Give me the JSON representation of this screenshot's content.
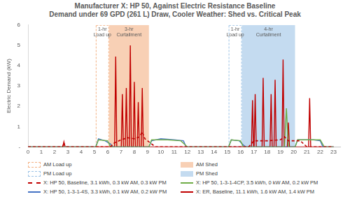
{
  "chart_data": {
    "type": "line",
    "title": [
      "Manufacturer X: HP 50, Against Electric Resistance Baseline",
      "Demand under 69 GPD (261 L) Draw, Cooler Weather: Shed vs. Critical Peak"
    ],
    "y_label": "Electric Demand (kW)",
    "xlim": [
      0,
      23.5
    ],
    "xticks": [
      0,
      1,
      2,
      3,
      4,
      5,
      6,
      7,
      8,
      9,
      10,
      11,
      12,
      13,
      14,
      15,
      16,
      17,
      18,
      19,
      20,
      21,
      22,
      23
    ],
    "ylim": [
      0,
      6
    ],
    "yticks": [
      {
        "value": 0,
        "label": "-"
      },
      1,
      2,
      3,
      4,
      5,
      6
    ],
    "grid": false,
    "legend": "bottom",
    "regions": [
      {
        "name": "AM Load up",
        "type": "box",
        "start": 5.1,
        "end": 6.1,
        "color": "#f4b183",
        "line_style": "dashed",
        "annotation": [
          "1-hr",
          "Load up"
        ]
      },
      {
        "name": "AM Shed",
        "type": "band",
        "start": 6.1,
        "end": 9.1,
        "color": "#f4b183",
        "annotation": [
          "3-hr",
          "Curtailment"
        ]
      },
      {
        "name": "PM Load up",
        "type": "box",
        "start": 15.1,
        "end": 16.1,
        "color": "#9dc3e6",
        "line_style": "dashed",
        "annotation": [
          "1-hr",
          "Load up"
        ]
      },
      {
        "name": "PM Shed",
        "type": "band",
        "start": 16.1,
        "end": 20.1,
        "color": "#9dc3e6",
        "annotation": [
          "4-hr",
          "Curtailment"
        ]
      }
    ],
    "series": [
      {
        "name": "X: HP 50, Baseline, 3.1 kWh, 0.3 kW AM, 0.3 kW PM",
        "color": "#c00000",
        "line_style": "dashed",
        "x": [
          0,
          2.6,
          2.7,
          2.8,
          6.2,
          6.5,
          7.0,
          7.5,
          8.0,
          8.4,
          8.6,
          8.8,
          9.2,
          9.6,
          16.6,
          17.0,
          18.0,
          19.0,
          19.3,
          19.6,
          20.5,
          21.0,
          23
        ],
        "values": [
          0,
          0,
          0.2,
          0,
          0,
          0.2,
          0.35,
          0.45,
          0.4,
          0.5,
          0.75,
          0.4,
          0.2,
          0,
          0,
          0.3,
          0.3,
          0.35,
          0.5,
          0.3,
          0.3,
          0,
          0
        ]
      },
      {
        "name": "X: HP 50, 1-3-1-4CP, 3.5 kWh, 0 kW AM, 0.2 kW PM",
        "color": "#70ad47",
        "line_style": "solid",
        "x": [
          0,
          5.1,
          5.3,
          6.0,
          6.2,
          9.1,
          9.3,
          10.5,
          11.5,
          12.0,
          15.1,
          15.3,
          16.0,
          16.2,
          19.3,
          19.45,
          19.6,
          20.1,
          20.3,
          22.0,
          22.3,
          23
        ],
        "values": [
          0,
          0,
          0.35,
          0.3,
          0,
          0,
          0.35,
          0.35,
          0.3,
          0,
          0,
          0.35,
          0.3,
          0,
          0,
          1.9,
          0,
          0,
          0.35,
          0.35,
          0,
          0
        ]
      },
      {
        "name": "X: HP 50, 1-3-1-4S, 3.3 kWh, 0.1 kW AM, 0.2 kW PM",
        "color": "#4472c4",
        "line_style": "solid",
        "x": [
          0,
          5.1,
          5.3,
          5.8,
          6.2,
          6.4,
          9.1,
          9.3,
          10.0,
          11.0,
          11.7,
          11.9,
          15.1,
          15.3,
          15.9,
          16.2,
          16.4,
          20.1,
          20.3,
          21.5,
          22.0,
          22.2,
          23
        ],
        "values": [
          0,
          0,
          0.4,
          0.3,
          0.15,
          0,
          0,
          0.3,
          0.4,
          0.35,
          0.3,
          0,
          0,
          0.35,
          0.3,
          0.1,
          0,
          0,
          0.35,
          0.35,
          0.3,
          0,
          0
        ]
      },
      {
        "name": "X: ER, Baseline, 11.1 kWh, 1.6 kW AM, 1.4 kW PM",
        "color": "#c00000",
        "line_style": "solid",
        "x": [
          0,
          2.62,
          2.7,
          2.78,
          6.52,
          6.6,
          6.68,
          7.02,
          7.1,
          7.18,
          7.32,
          7.4,
          7.48,
          7.62,
          7.7,
          7.78,
          7.92,
          8.0,
          8.08,
          8.22,
          8.3,
          8.38,
          8.52,
          8.6,
          8.68,
          16.82,
          16.9,
          16.98,
          17.02,
          17.1,
          17.18,
          17.62,
          17.7,
          17.78,
          18.22,
          18.3,
          18.38,
          18.52,
          18.6,
          18.68,
          19.12,
          19.2,
          19.28,
          19.52,
          19.6,
          19.68,
          21.12,
          21.2,
          21.28,
          23
        ],
        "values": [
          0,
          0,
          0.25,
          0,
          0,
          4.45,
          0,
          0,
          2.6,
          0,
          0,
          2.9,
          0,
          0,
          5.0,
          0,
          0,
          3.2,
          0,
          0,
          2.2,
          0,
          0,
          2.9,
          0,
          0,
          2.3,
          0,
          0,
          2.6,
          0,
          0,
          3.4,
          0,
          0,
          2.6,
          0,
          0,
          3.3,
          0,
          0,
          4.3,
          0,
          0,
          1.2,
          0,
          0,
          2.4,
          0,
          0
        ]
      }
    ]
  }
}
